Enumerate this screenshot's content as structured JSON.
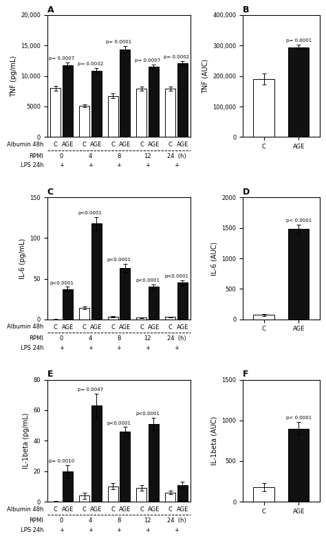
{
  "chart_data": [
    {
      "type": "bar",
      "title": "A",
      "ylabel": "TNF (pg/mL)",
      "categories": [
        "0",
        "4",
        "8",
        "12",
        "24  (h)"
      ],
      "series": [
        {
          "name": "C",
          "color": "#ffffff",
          "values": [
            8000,
            5100,
            6700,
            7900,
            7950
          ],
          "errors": [
            350,
            250,
            400,
            350,
            300
          ]
        },
        {
          "name": "AGE",
          "color": "#111111",
          "values": [
            11800,
            10900,
            14400,
            11500,
            12100
          ],
          "errors": [
            450,
            400,
            500,
            400,
            350
          ]
        }
      ],
      "ylim": [
        0,
        20000
      ],
      "yticks": [
        0,
        5000,
        {
          "value": 10000,
          "label": "10,000"
        },
        {
          "value": 15000,
          "label": "15,000"
        },
        {
          "value": 20000,
          "label": "20,000"
        }
      ],
      "pvalues": [
        "p= 0.0007",
        "p= 0.0032",
        "p= 0.0001",
        "p= 0.0007",
        "p= 0.0002"
      ],
      "row_labels": {
        "series": "Albumin 48h",
        "categories": "RPMI"
      },
      "extra_rows": [
        {
          "label": "LPS 24h",
          "texts": [
            "+",
            "+",
            "+",
            "+",
            "+"
          ]
        }
      ]
    },
    {
      "type": "bar",
      "title": "B",
      "ylabel": "TNF (AUC)",
      "categories": [
        "C",
        "AGE"
      ],
      "values": [
        190000,
        295000
      ],
      "errors": [
        18000,
        8000
      ],
      "colors": [
        "#ffffff",
        "#111111"
      ],
      "ylim": [
        0,
        400000
      ],
      "yticks": [
        0,
        {
          "value": 100000,
          "label": "100,000"
        },
        {
          "value": 200000,
          "label": "200,000"
        },
        {
          "value": 300000,
          "label": "300,000"
        },
        {
          "value": 400000,
          "label": "400,000"
        }
      ],
      "pvalues": [
        null,
        "p= 0.0001"
      ]
    },
    {
      "type": "bar",
      "title": "C",
      "ylabel": "IL-6 (pg/mL)",
      "categories": [
        "0",
        "4",
        "8",
        "12",
        "24  (h)"
      ],
      "series": [
        {
          "name": "C",
          "color": "#ffffff",
          "values": [
            0,
            14,
            3,
            2,
            3
          ],
          "errors": [
            0.3,
            2,
            1,
            0.5,
            0.5
          ]
        },
        {
          "name": "AGE",
          "color": "#111111",
          "values": [
            37,
            118,
            63,
            40,
            45
          ],
          "errors": [
            3,
            8,
            5,
            3,
            3
          ]
        }
      ],
      "ylim": [
        0,
        150
      ],
      "yticks": [
        0,
        50,
        100,
        150
      ],
      "pvalues": [
        "p<0.0001",
        "p<0.0001",
        "p<0.0001",
        "p<0.0001",
        "p<0.0001"
      ],
      "row_labels": {
        "series": "Albumin 48h",
        "categories": "RPMI"
      },
      "extra_rows": [
        {
          "label": "LPS 24h",
          "texts": [
            "+",
            "+",
            "+",
            "+",
            "+"
          ]
        }
      ]
    },
    {
      "type": "bar",
      "title": "D",
      "ylabel": "IL-6 (AUC)",
      "categories": [
        "C",
        "AGE"
      ],
      "values": [
        70,
        1480
      ],
      "errors": [
        15,
        70
      ],
      "colors": [
        "#ffffff",
        "#111111"
      ],
      "ylim": [
        0,
        2000
      ],
      "yticks": [
        0,
        500,
        1000,
        1500,
        2000
      ],
      "pvalues": [
        null,
        "p< 0.0001"
      ]
    },
    {
      "type": "bar",
      "title": "E",
      "ylabel": "IL-1beta (pg/mL)",
      "categories": [
        "0",
        "4",
        "8",
        "12",
        "24  (h)"
      ],
      "series": [
        {
          "name": "C",
          "color": "#ffffff",
          "values": [
            0,
            4,
            10,
            9,
            6
          ],
          "errors": [
            0.3,
            2,
            2,
            2,
            1
          ]
        },
        {
          "name": "AGE",
          "color": "#111111",
          "values": [
            20,
            63,
            46,
            51,
            11
          ],
          "errors": [
            4,
            8,
            3,
            4,
            2
          ]
        }
      ],
      "ylim": [
        0,
        80
      ],
      "yticks": [
        0,
        20,
        40,
        60,
        80
      ],
      "pvalues": [
        "p= 0.0010",
        "p= 0.0047",
        "p<0.0001",
        "p<0.0001",
        null
      ],
      "row_labels": {
        "series": "Albumin 48h",
        "categories": "RPMI"
      },
      "extra_rows": [
        {
          "label": "LPS 24h",
          "texts": [
            "+",
            "+",
            "+",
            "+",
            "+"
          ]
        }
      ]
    },
    {
      "type": "bar",
      "title": "F",
      "ylabel": "IL-1beta (AUC)",
      "categories": [
        "C",
        "AGE"
      ],
      "values": [
        175,
        900
      ],
      "errors": [
        50,
        80
      ],
      "colors": [
        "#ffffff",
        "#111111"
      ],
      "ylim": [
        0,
        1500
      ],
      "yticks": [
        0,
        500,
        1000,
        1500
      ],
      "pvalues": [
        null,
        "p< 0.0001"
      ]
    }
  ]
}
